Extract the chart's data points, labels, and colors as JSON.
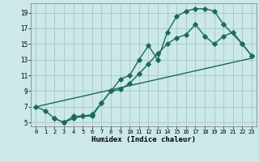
{
  "title": "",
  "xlabel": "Humidex (Indice chaleur)",
  "xlim": [
    -0.5,
    23.5
  ],
  "ylim": [
    4.5,
    20.2
  ],
  "xticks": [
    0,
    1,
    2,
    3,
    4,
    5,
    6,
    7,
    8,
    9,
    10,
    11,
    12,
    13,
    14,
    15,
    16,
    17,
    18,
    19,
    20,
    21,
    22,
    23
  ],
  "yticks": [
    5,
    7,
    9,
    11,
    13,
    15,
    17,
    19
  ],
  "bg_color": "#cce8e8",
  "grid_color": "#aacccc",
  "line_color": "#1a6b5a",
  "line1_x": [
    0,
    1,
    2,
    3,
    4,
    5,
    6,
    7,
    8,
    9,
    10,
    11,
    12,
    13,
    14,
    15,
    16,
    17,
    18,
    19,
    20,
    22,
    23
  ],
  "line1_y": [
    7.0,
    6.5,
    5.5,
    5.0,
    5.8,
    5.8,
    5.8,
    7.5,
    9.0,
    10.5,
    11.0,
    13.0,
    14.8,
    13.0,
    16.5,
    18.5,
    19.2,
    19.5,
    19.5,
    19.2,
    17.5,
    15.0,
    13.5
  ],
  "line2_x": [
    2,
    3,
    4,
    5,
    6,
    7,
    8,
    9,
    10,
    11,
    12,
    13,
    14,
    15,
    16,
    17,
    18,
    19,
    20,
    21,
    22,
    23
  ],
  "line2_y": [
    5.5,
    5.0,
    5.5,
    5.8,
    6.0,
    7.5,
    9.0,
    9.2,
    10.0,
    11.2,
    12.5,
    13.8,
    15.0,
    15.8,
    16.2,
    17.5,
    16.0,
    15.0,
    16.0,
    16.5,
    15.0,
    13.5
  ],
  "line3_x": [
    0,
    23
  ],
  "line3_y": [
    7.0,
    13.2
  ]
}
